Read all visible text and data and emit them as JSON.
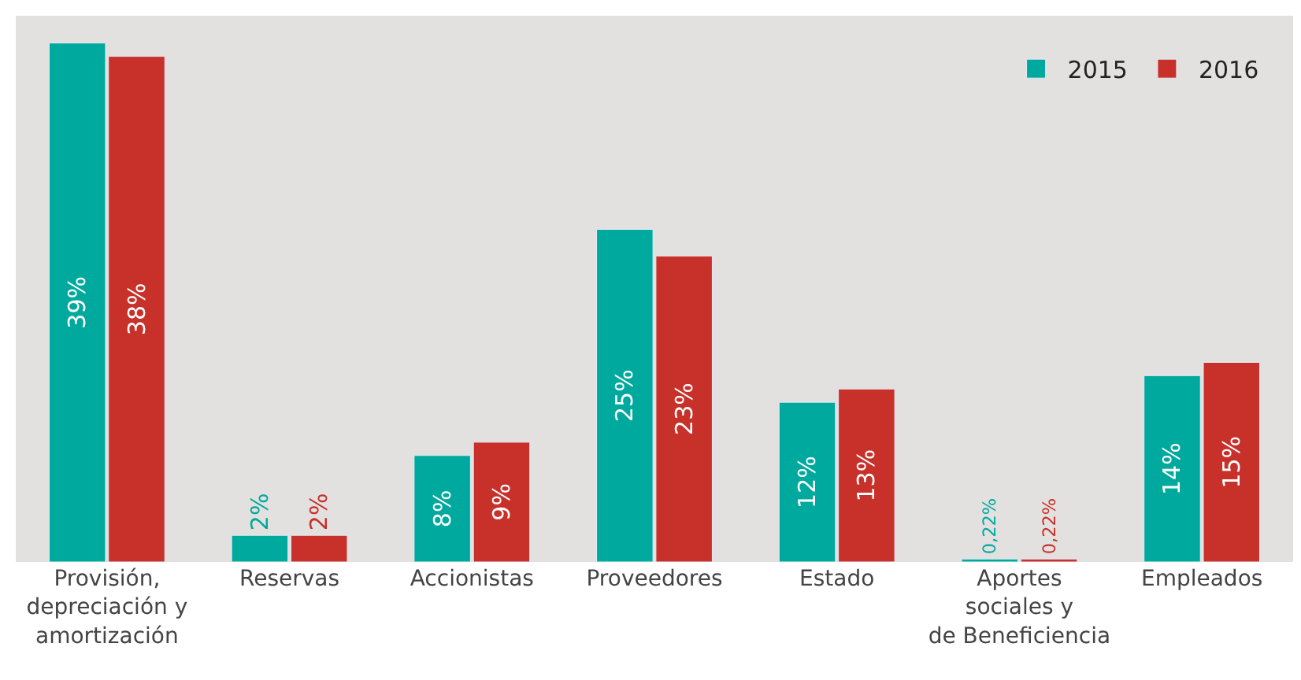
{
  "chart_data": {
    "type": "bar",
    "categories": [
      "Provisión,\ndepreciación y\namortización",
      "Reservas",
      "Accionistas",
      "Proveedores",
      "Estado",
      "Aportes\nsociales y\nde Beneficiencia",
      "Empleados"
    ],
    "series": [
      {
        "name": "2015",
        "color": "#00a99d",
        "values": [
          39,
          2,
          8,
          25,
          12,
          0.22,
          14
        ],
        "value_labels": [
          "39%",
          "2%",
          "8%",
          "25%",
          "12%",
          "0,22%",
          "14%"
        ]
      },
      {
        "name": "2016",
        "color": "#c8302a",
        "values": [
          38,
          2,
          9,
          23,
          13,
          0.22,
          15
        ],
        "value_labels": [
          "38%",
          "2%",
          "9%",
          "23%",
          "13%",
          "0,22%",
          "15%"
        ]
      }
    ],
    "legend": "top right"
  }
}
